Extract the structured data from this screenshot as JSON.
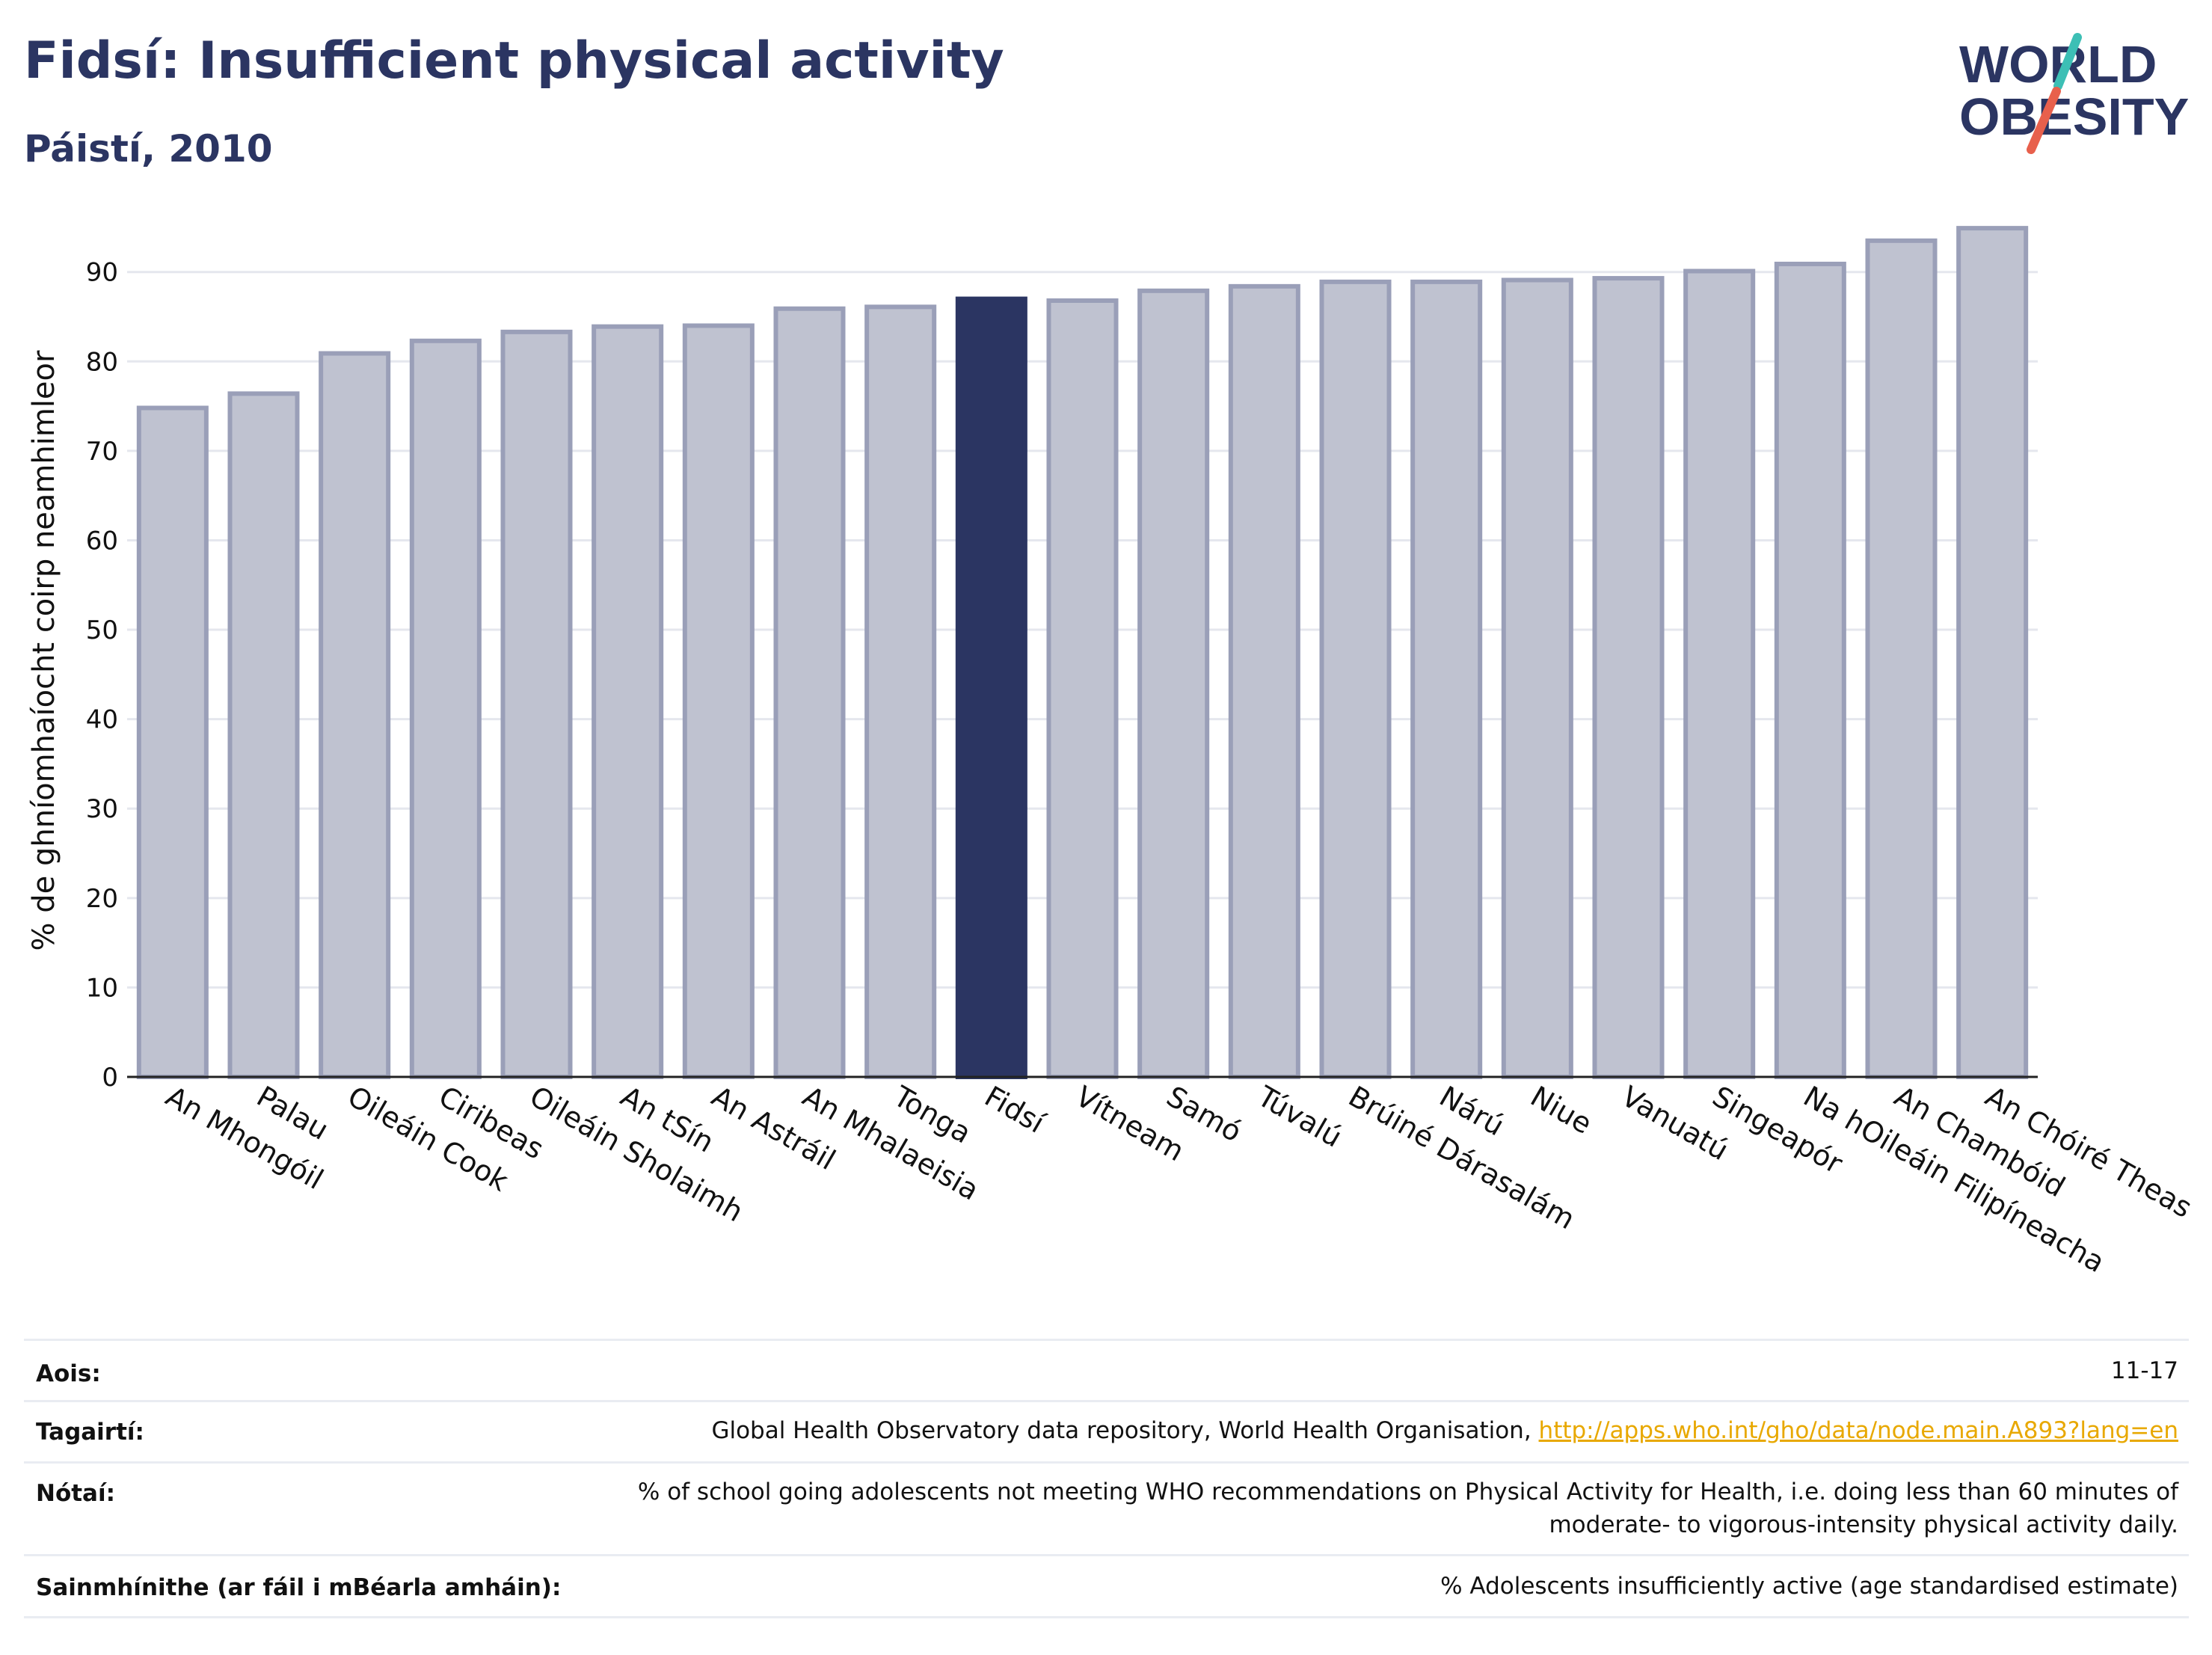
{
  "header": {
    "title": "Fidsí: Insufficient physical activity",
    "subtitle": "Páistí, 2010"
  },
  "logo": {
    "line1": "WORLD",
    "line2": "OBESITY",
    "colors": {
      "text": "#2b3562",
      "slash_teal": "#3dbfb5",
      "slash_red": "#e8604c"
    }
  },
  "colors": {
    "bar_default": "#bfc2d0",
    "bar_default_edge": "#9a9fb8",
    "bar_highlight": "#2b3562",
    "grid": "#e5e7ee",
    "axis": "#222222"
  },
  "chart_data": {
    "type": "bar",
    "title": "Fidsí: Insufficient physical activity",
    "subtitle": "Páistí, 2010",
    "ylabel": "% de ghníomhaíocht coirp neamhimleor",
    "xlabel": "",
    "ylim": [
      0,
      97
    ],
    "yticks": [
      0,
      10,
      20,
      30,
      40,
      50,
      60,
      70,
      80,
      90
    ],
    "grid": true,
    "highlight": "Fidsí",
    "categories": [
      "An Mhongóil",
      "Palau",
      "Oileáin Cook",
      "Ciribeas",
      "Oileáin Sholaimh",
      "An tSín",
      "An Astráil",
      "An Mhalaeisia",
      "Tonga",
      "Fidsí",
      "Vítneam",
      "Samó",
      "Túvalú",
      "Brúiné Dárasalám",
      "Nárú",
      "Niue",
      "Vanuatú",
      "Singeapór",
      "Na hOileáin Filipíneacha",
      "An Chambóid",
      "An Chóiré Theas"
    ],
    "values": [
      74.8,
      76.4,
      80.9,
      82.3,
      83.3,
      83.9,
      84.0,
      85.9,
      86.1,
      87.0,
      86.8,
      87.9,
      88.4,
      88.9,
      88.9,
      89.1,
      89.3,
      90.1,
      90.9,
      93.5,
      94.9
    ]
  },
  "meta": {
    "age_label": "Aois:",
    "age_value": "11-17",
    "refs_label": "Tagairtí:",
    "refs_text": "Global Health Observatory data repository, World Health Organisation, ",
    "refs_link": "http://apps.who.int/gho/data/node.main.A893?lang=en",
    "notes_label": "Nótaí:",
    "notes_line1": "% of school going adolescents not meeting WHO recommendations on Physical Activity for Health, i.e. doing less than 60 minutes of",
    "notes_line2": "moderate- to vigorous-intensity physical activity daily.",
    "defs_label": "Sainmhínithe (ar fáil i mBéarla amháin):",
    "defs_value": "% Adolescents insufficiently active (age standardised estimate)"
  }
}
